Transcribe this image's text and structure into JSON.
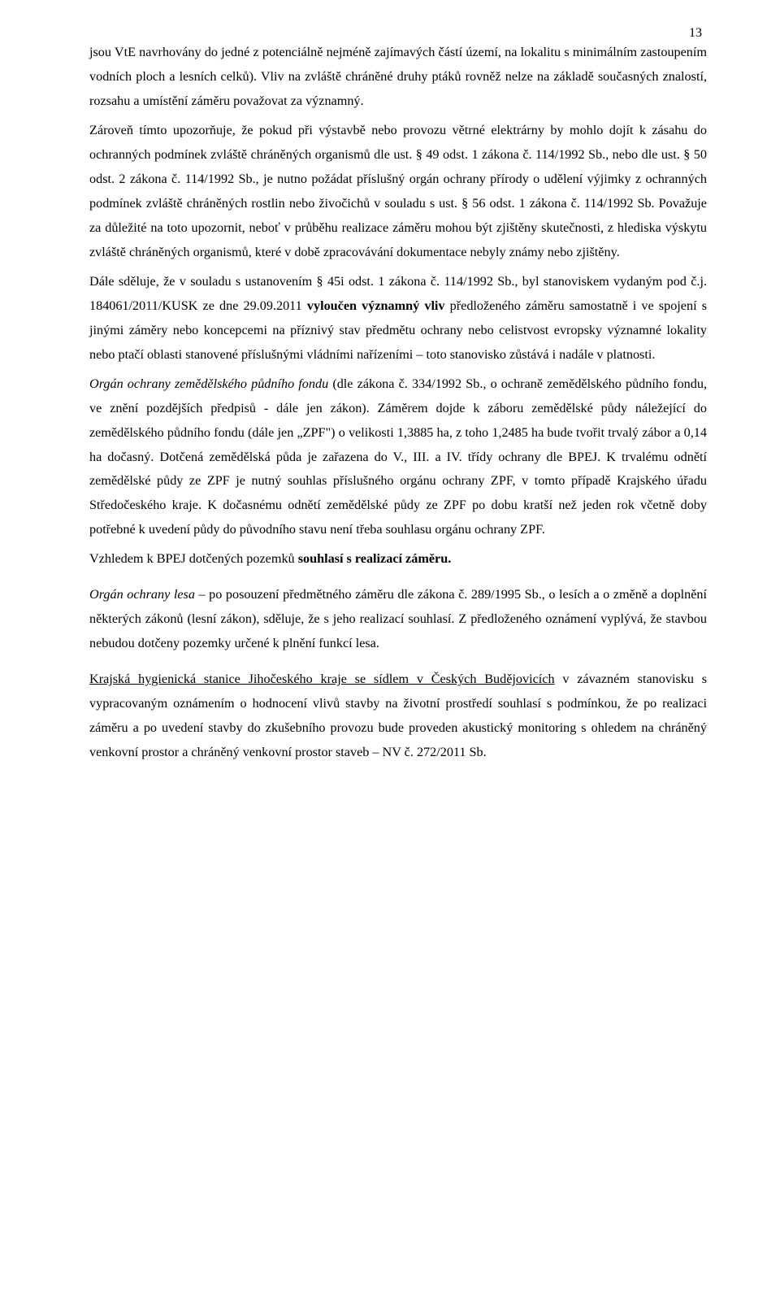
{
  "pageNumber": "13",
  "para1": "jsou VtE navrhovány do jedné z potenciálně nejméně zajímavých částí území, na lokalitu s minimálním zastoupením vodních ploch a lesních celků). Vliv na zvláště chráněné druhy ptáků rovněž nelze na základě současných znalostí, rozsahu a umístění záměru považovat za významný.",
  "para2": "Zároveň tímto upozorňuje, že pokud při výstavbě nebo provozu větrné elektrárny by mohlo dojít k zásahu do ochranných podmínek zvláště chráněných organismů dle ust. § 49 odst. 1 zákona č. 114/1992 Sb., nebo dle ust. § 50 odst. 2 zákona č. 114/1992 Sb., je nutno požádat příslušný orgán ochrany přírody o udělení výjimky z ochranných podmínek zvláště chráněných rostlin nebo živočichů v souladu s ust. § 56 odst. 1 zákona č. 114/1992 Sb. Považuje za důležité na toto upozornit, neboť v průběhu realizace záměru mohou být zjištěny skutečnosti, z hlediska výskytu zvláště chráněných organismů, které v době zpracovávání dokumentace nebyly známy nebo zjištěny.",
  "para3_pre": "Dále sděluje, že v souladu s ustanovením § 45i odst. 1 zákona č. 114/1992 Sb., byl stanoviskem vydaným pod č.j. 184061/2011/KUSK ze dne 29.09.2011 ",
  "para3_bold": "vyloučen významný vliv",
  "para3_post": " předloženého záměru samostatně i ve spojení s jinými záměry nebo koncepcemi na příznivý stav předmětu ochrany nebo celistvost evropsky významné lokality nebo ptačí oblasti stanovené příslušnými vládními nařízeními – toto stanovisko zůstává i nadále v platnosti.",
  "para4_head": "Orgán ochrany zemědělského půdního fondu ",
  "para4_body": "(dle zákona č. 334/1992 Sb., o ochraně zemědělského půdního fondu, ve znění pozdějších předpisů - dále jen zákon). Záměrem dojde k záboru zemědělské půdy náležející do zemědělského půdního fondu (dále jen „ZPF\") o velikosti 1,3885 ha, z toho 1,2485 ha bude tvořit trvalý zábor a 0,14 ha dočasný.  Dotčená zemědělská půda je zařazena do V., III. a IV. třídy ochrany dle BPEJ. K trvalému odnětí zemědělské půdy ze ZPF je nutný souhlas příslušného orgánu ochrany ZPF, v tomto případě Krajského úřadu Středočeského kraje. K dočasnému odnětí zemědělské půdy ze ZPF po dobu kratší než jeden rok včetně doby potřebné k uvedení půdy do původního stavu není třeba souhlasu orgánu ochrany ZPF.",
  "para5_pre": "Vzhledem k BPEJ dotčených pozemků ",
  "para5_bold": "souhlasí s realizací záměru.",
  "para6_head": "Orgán ochrany lesa",
  "para6_body": " – po posouzení předmětného záměru dle zákona č. 289/1995 Sb., o lesích a o změně a doplnění některých zákonů (lesní zákon), sděluje, že s jeho realizací souhlasí. Z předloženého oznámení vyplývá, že stavbou nebudou dotčeny pozemky určené k plnění funkcí lesa.",
  "para7_head": "Krajská hygienická stanice Jihočeského kraje se sídlem v Českých Budějovicích",
  "para7_body": " v závazném stanovisku s vypracovaným oznámením o hodnocení vlivů stavby na životní prostředí souhlasí s podmínkou, že po realizaci záměru a po uvedení stavby do zkušebního provozu bude proveden akustický monitoring s ohledem na chráněný venkovní prostor a chráněný venkovní prostor staveb – NV č. 272/2011 Sb."
}
